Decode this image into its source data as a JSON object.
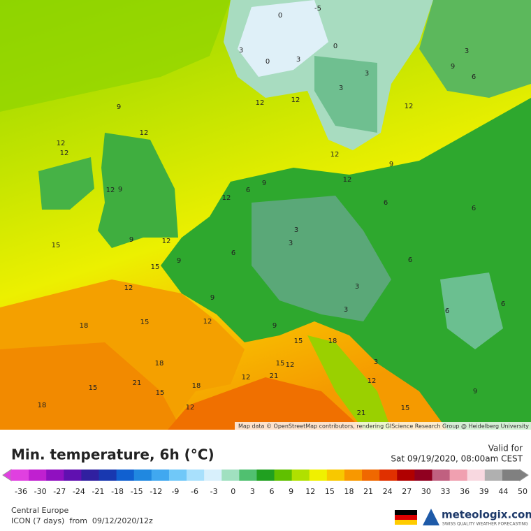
{
  "header": {
    "title": "Min. temperature, 6h (°C)"
  },
  "valid": {
    "label": "Valid for",
    "time": "Sat 09/19/2020, 08:00am CEST"
  },
  "footer": {
    "region": "Central Europe",
    "model": "ICON (7 days)  from  09/12/2020/12z"
  },
  "brand": {
    "name": "meteologix.com",
    "tagline": "SWISS QUALITY WEATHER FORECASTING"
  },
  "colorbar": {
    "ticks": [
      -36,
      -30,
      -27,
      -24,
      -21,
      -18,
      -15,
      -12,
      -9,
      -6,
      -3,
      0,
      3,
      6,
      9,
      12,
      15,
      18,
      21,
      24,
      27,
      30,
      33,
      36,
      39,
      44,
      50
    ]
  },
  "map": {
    "attribution": "Map data © OpenStreetMap contributors, rendering GIScience Research Group @ Heidelberg University",
    "contour_labels": [
      "-5",
      "0",
      "0",
      "0",
      "3",
      "3",
      "3",
      "3",
      "3",
      "9",
      "6",
      "12",
      "12",
      "12",
      "9",
      "12",
      "12",
      "12",
      "9",
      "12",
      "12",
      "6",
      "9",
      "12",
      "12",
      "9",
      "6",
      "6",
      "3",
      "3",
      "15",
      "9",
      "12",
      "15",
      "9",
      "6",
      "12",
      "9",
      "6",
      "3",
      "3",
      "18",
      "15",
      "12",
      "15",
      "18",
      "9",
      "18",
      "3",
      "15",
      "12",
      "12",
      "21",
      "21",
      "15",
      "15",
      "18",
      "12",
      "18",
      "12",
      "21",
      "15",
      "9",
      "6",
      "6"
    ]
  }
}
